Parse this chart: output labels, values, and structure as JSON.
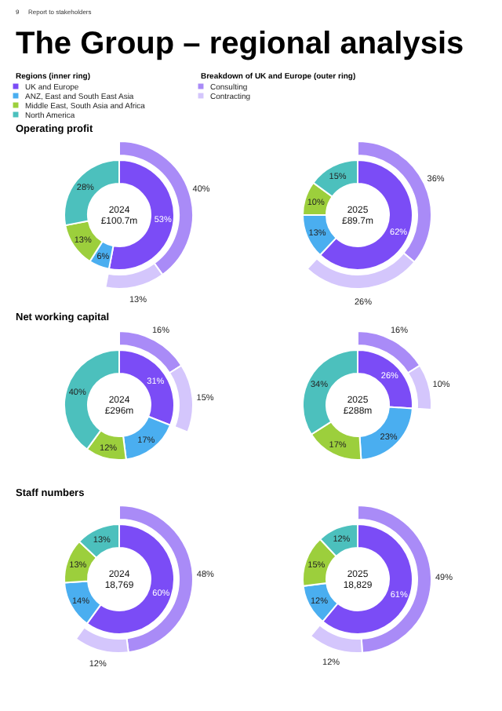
{
  "chart_data": [
    {
      "type": "other",
      "title": "The Group – regional analysis",
      "annotations": [
        "9",
        "Report to stakeholders"
      ]
    },
    {
      "type": "donut",
      "title": "Operating profit",
      "legend": "top",
      "legend_title": "Regions (inner ring)",
      "annotations": [
        "2024",
        "£100.7m"
      ],
      "categories": [
        "UK and Europe",
        "ANZ, East and South East Asia",
        "Middle East, South Asia and Africa",
        "North America",
        "Consulting",
        "Contracting"
      ],
      "colors": [
        "#7b4cf6",
        "#4aaef0",
        "#9ccf3c",
        "#4cc0bd",
        "#a98bf7",
        "#d4c6fc"
      ],
      "series": [
        {
          "values": [
            53,
            6,
            13,
            28,
            null,
            null
          ],
          "value_labels": [
            "53%",
            "6%",
            "13%",
            "28%",
            null,
            null
          ]
        },
        {
          "name": "Breakdown of UK and Europe (outer ring)",
          "values": [
            null,
            null,
            null,
            null,
            40,
            13
          ],
          "value_labels": [
            null,
            null,
            null,
            null,
            "40%",
            "13%"
          ]
        }
      ]
    },
    {
      "type": "donut",
      "annotations": [
        "2025",
        "£89.7m"
      ],
      "categories": [
        null,
        null,
        null,
        null,
        null,
        null
      ],
      "colors": [
        "#7b4cf6",
        "#4aaef0",
        "#9ccf3c",
        "#4cc0bd",
        "#a98bf7",
        "#d4c6fc"
      ],
      "series": [
        {
          "values": [
            62,
            13,
            10,
            15,
            null,
            null
          ],
          "value_labels": [
            "62%",
            "13%",
            "10%",
            "15%",
            null,
            null
          ]
        },
        {
          "values": [
            null,
            null,
            null,
            null,
            36,
            26
          ],
          "value_labels": [
            null,
            null,
            null,
            null,
            "36%",
            "26%"
          ]
        }
      ]
    },
    {
      "type": "donut",
      "title": "Net working capital",
      "annotations": [
        "2024",
        "£296m"
      ],
      "categories": [
        null,
        null,
        null,
        null,
        null,
        null
      ],
      "colors": [
        "#7b4cf6",
        "#4aaef0",
        "#9ccf3c",
        "#4cc0bd",
        "#a98bf7",
        "#d4c6fc"
      ],
      "series": [
        {
          "values": [
            31,
            17,
            12,
            40,
            null,
            null
          ],
          "value_labels": [
            "31%",
            "17%",
            "12%",
            "40%",
            null,
            null
          ]
        },
        {
          "values": [
            null,
            null,
            null,
            null,
            16,
            15
          ],
          "value_labels": [
            null,
            null,
            null,
            null,
            "16%",
            "15%"
          ]
        }
      ]
    },
    {
      "type": "donut",
      "annotations": [
        "2025",
        "£288m"
      ],
      "categories": [
        null,
        null,
        null,
        null,
        null,
        null
      ],
      "colors": [
        "#7b4cf6",
        "#4aaef0",
        "#9ccf3c",
        "#4cc0bd",
        "#a98bf7",
        "#d4c6fc"
      ],
      "series": [
        {
          "values": [
            26,
            23,
            17,
            34,
            null,
            null
          ],
          "value_labels": [
            "26%",
            "23%",
            "17%",
            "34%",
            null,
            null
          ]
        },
        {
          "values": [
            null,
            null,
            null,
            null,
            16,
            10
          ],
          "value_labels": [
            null,
            null,
            null,
            null,
            "16%",
            "10%"
          ]
        }
      ]
    },
    {
      "type": "donut",
      "title": "Staff numbers",
      "annotations": [
        "2024",
        "18,769"
      ],
      "categories": [
        null,
        null,
        null,
        null,
        null,
        null
      ],
      "colors": [
        "#7b4cf6",
        "#4aaef0",
        "#9ccf3c",
        "#4cc0bd",
        "#a98bf7",
        "#d4c6fc"
      ],
      "series": [
        {
          "values": [
            60,
            14,
            13,
            13,
            null,
            null
          ],
          "value_labels": [
            "60%",
            "14%",
            "13%",
            "13%",
            null,
            null
          ]
        },
        {
          "values": [
            null,
            null,
            null,
            null,
            48,
            12
          ],
          "value_labels": [
            null,
            null,
            null,
            null,
            "48%",
            "12%"
          ]
        }
      ]
    },
    {
      "type": "donut",
      "annotations": [
        "2025",
        "18,829"
      ],
      "categories": [
        null,
        null,
        null,
        null,
        null,
        null
      ],
      "colors": [
        "#7b4cf6",
        "#4aaef0",
        "#9ccf3c",
        "#4cc0bd",
        "#a98bf7",
        "#d4c6fc"
      ],
      "series": [
        {
          "values": [
            61,
            12,
            15,
            12,
            null,
            null
          ],
          "value_labels": [
            "61%",
            "12%",
            "15%",
            "12%",
            null,
            null
          ]
        },
        {
          "values": [
            null,
            null,
            null,
            null,
            49,
            12
          ],
          "value_labels": [
            null,
            null,
            null,
            null,
            "49%",
            "12%"
          ]
        }
      ]
    }
  ]
}
